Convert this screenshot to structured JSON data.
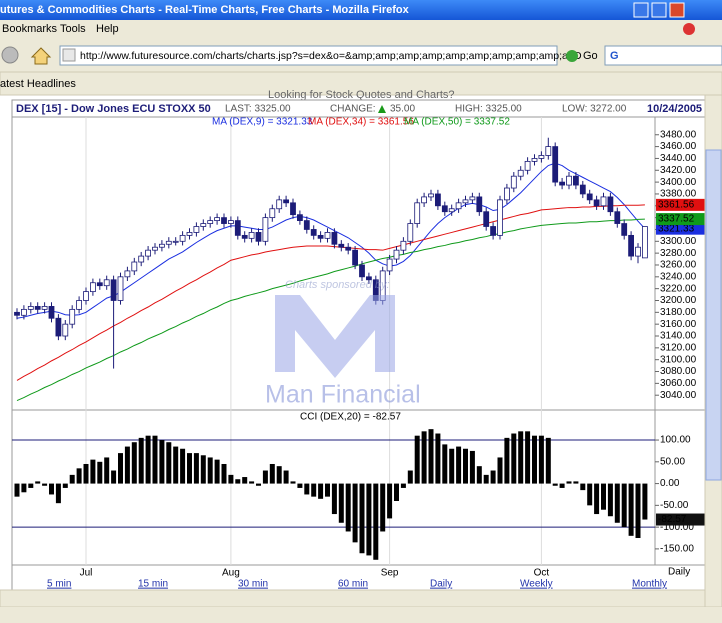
{
  "browser": {
    "window_title": "utures & Commodities Charts - Real-Time Charts, Free Charts - Mozilla Firefox",
    "menu": [
      "Bookmarks",
      "Tools",
      "Help"
    ],
    "url": "http://www.futuresource.com/charts/charts.jsp?s=dex&o=&amp;amp;amp;amp;amp;amp;amp;amp;amp;a=D",
    "go": "Go",
    "bookmark": "atest Headlines"
  },
  "page": {
    "promo": "Looking for Stock Quotes and Charts?",
    "links": [
      "5 min",
      "15 min",
      "30 min",
      "60 min",
      "Daily",
      "Weekly",
      "Monthly"
    ]
  },
  "watermark": {
    "sponsor": "Charts sponsored by:",
    "brand": "Man Financial"
  },
  "chart_data": [
    {
      "type": "candlestick",
      "title": "DEX [15] - Dow Jones ECU STOXX 50",
      "last": "LAST: 3325.00",
      "change_label": "CHANGE:",
      "change": "35.00",
      "high_label": "HIGH: 3325.00",
      "low_label": "LOW: 3272.00",
      "date": "10/24/2005",
      "period": "Daily",
      "up_color": "#ffffff",
      "down_color": "#1c1c78",
      "categories": [
        null,
        null,
        null,
        null,
        null,
        null,
        null,
        null,
        null,
        null,
        "Jul",
        null,
        null,
        null,
        null,
        null,
        null,
        null,
        null,
        null,
        null,
        null,
        null,
        null,
        null,
        null,
        null,
        null,
        null,
        null,
        null,
        "Aug",
        null,
        null,
        null,
        null,
        null,
        null,
        null,
        null,
        null,
        null,
        null,
        null,
        null,
        null,
        null,
        null,
        null,
        null,
        null,
        null,
        null,
        null,
        "Sep",
        null,
        null,
        null,
        null,
        null,
        null,
        null,
        null,
        null,
        null,
        null,
        null,
        null,
        null,
        null,
        null,
        null,
        null,
        null,
        null,
        null,
        "Oct",
        null,
        null,
        null,
        null,
        null,
        null,
        null,
        null,
        null,
        null,
        null,
        null,
        null,
        null,
        null
      ],
      "open": [
        3180,
        3175,
        3185,
        3190,
        3185,
        3190,
        3170,
        3140,
        3160,
        3185,
        3200,
        3215,
        3230,
        3225,
        3235,
        3200,
        3240,
        3250,
        3265,
        3275,
        3285,
        3290,
        3295,
        3300,
        3300,
        3310,
        3315,
        3325,
        3330,
        3335,
        3340,
        3330,
        3335,
        3310,
        3305,
        3315,
        3300,
        3340,
        3355,
        3370,
        3365,
        3345,
        3335,
        3320,
        3310,
        3305,
        3315,
        3295,
        3290,
        3285,
        3260,
        3240,
        3235,
        3200,
        3250,
        3270,
        3285,
        3300,
        3330,
        3365,
        3375,
        3380,
        3360,
        3350,
        3355,
        3365,
        3370,
        3375,
        3350,
        3325,
        3310,
        3370,
        3390,
        3410,
        3420,
        3435,
        3440,
        3445,
        3460,
        3400,
        3395,
        3410,
        3395,
        3380,
        3370,
        3360,
        3375,
        3350,
        3330,
        3310,
        3275,
        3272
      ],
      "high": [
        3187,
        3192,
        3197,
        3197,
        3197,
        3197,
        3177,
        3167,
        3192,
        3207,
        3222,
        3237,
        3237,
        3242,
        3242,
        3247,
        3257,
        3272,
        3282,
        3292,
        3297,
        3302,
        3307,
        3307,
        3317,
        3322,
        3332,
        3337,
        3342,
        3347,
        3347,
        3342,
        3342,
        3317,
        3322,
        3322,
        3347,
        3362,
        3377,
        3377,
        3372,
        3352,
        3342,
        3327,
        3317,
        3322,
        3322,
        3302,
        3297,
        3292,
        3267,
        3247,
        3242,
        3257,
        3277,
        3292,
        3307,
        3337,
        3372,
        3382,
        3387,
        3387,
        3367,
        3362,
        3372,
        3377,
        3382,
        3382,
        3357,
        3332,
        3377,
        3397,
        3417,
        3427,
        3442,
        3447,
        3452,
        3475,
        3467,
        3407,
        3417,
        3417,
        3402,
        3387,
        3377,
        3382,
        3382,
        3357,
        3337,
        3317,
        3297,
        3325
      ],
      "low": [
        3168,
        3168,
        3178,
        3178,
        3178,
        3163,
        3133,
        3133,
        3153,
        3178,
        3193,
        3208,
        3218,
        3218,
        3085,
        3193,
        3233,
        3243,
        3258,
        3268,
        3278,
        3283,
        3288,
        3293,
        3293,
        3303,
        3308,
        3318,
        3323,
        3328,
        3323,
        3323,
        3303,
        3298,
        3298,
        3293,
        3293,
        3333,
        3348,
        3358,
        3338,
        3328,
        3313,
        3303,
        3298,
        3298,
        3288,
        3283,
        3278,
        3253,
        3233,
        3228,
        3193,
        3193,
        3243,
        3263,
        3278,
        3293,
        3323,
        3358,
        3368,
        3353,
        3343,
        3343,
        3348,
        3358,
        3363,
        3343,
        3318,
        3303,
        3303,
        3363,
        3383,
        3403,
        3413,
        3428,
        3433,
        3438,
        3393,
        3388,
        3388,
        3388,
        3373,
        3363,
        3353,
        3353,
        3343,
        3323,
        3303,
        3268,
        3263,
        3272
      ],
      "close": [
        3175,
        3185,
        3190,
        3185,
        3190,
        3170,
        3140,
        3160,
        3185,
        3200,
        3215,
        3230,
        3225,
        3235,
        3200,
        3240,
        3250,
        3265,
        3275,
        3285,
        3290,
        3295,
        3300,
        3300,
        3310,
        3315,
        3325,
        3330,
        3335,
        3340,
        3330,
        3335,
        3310,
        3305,
        3315,
        3300,
        3340,
        3355,
        3370,
        3365,
        3345,
        3335,
        3320,
        3310,
        3305,
        3315,
        3295,
        3290,
        3285,
        3260,
        3240,
        3235,
        3200,
        3250,
        3270,
        3285,
        3300,
        3330,
        3365,
        3375,
        3380,
        3360,
        3350,
        3355,
        3365,
        3370,
        3375,
        3350,
        3325,
        3310,
        3370,
        3390,
        3410,
        3420,
        3435,
        3440,
        3445,
        3460,
        3400,
        3395,
        3410,
        3395,
        3380,
        3370,
        3360,
        3375,
        3350,
        3330,
        3310,
        3275,
        3290,
        3325
      ],
      "series": [
        {
          "name": "MA (DEX,9) = 3321.33",
          "color": "#1a2ee0",
          "values": [
            3170,
            3172,
            3175,
            3178,
            3180,
            3182,
            3180,
            3176,
            3175,
            3176,
            3180,
            3188,
            3196,
            3204,
            3208,
            3214,
            3222,
            3230,
            3238,
            3246,
            3254,
            3262,
            3270,
            3276,
            3282,
            3290,
            3298,
            3305,
            3312,
            3318,
            3322,
            3326,
            3326,
            3324,
            3322,
            3320,
            3320,
            3324,
            3330,
            3336,
            3340,
            3342,
            3340,
            3336,
            3330,
            3324,
            3318,
            3312,
            3306,
            3298,
            3290,
            3280,
            3268,
            3262,
            3258,
            3260,
            3266,
            3276,
            3290,
            3304,
            3318,
            3330,
            3340,
            3348,
            3356,
            3362,
            3364,
            3362,
            3358,
            3352,
            3354,
            3362,
            3372,
            3382,
            3394,
            3406,
            3418,
            3428,
            3432,
            3428,
            3420,
            3414,
            3408,
            3402,
            3396,
            3390,
            3384,
            3374,
            3362,
            3348,
            3334,
            3321.33
          ]
        },
        {
          "name": "MA (DEX,34) = 3361.56",
          "color": "#e01010",
          "values": [
            3065,
            3072,
            3078,
            3085,
            3091,
            3098,
            3104,
            3111,
            3117,
            3124,
            3130,
            3137,
            3144,
            3150,
            3157,
            3163,
            3170,
            3176,
            3183,
            3189,
            3196,
            3202,
            3209,
            3216,
            3222,
            3229,
            3235,
            3242,
            3248,
            3255,
            3261,
            3268,
            3271,
            3274,
            3277,
            3279,
            3282,
            3284,
            3286,
            3288,
            3290,
            3291,
            3292,
            3292,
            3292,
            3292,
            3291,
            3290,
            3289,
            3288,
            3287,
            3286,
            3286,
            3285,
            3288,
            3291,
            3294,
            3297,
            3300,
            3303,
            3306,
            3309,
            3312,
            3315,
            3318,
            3321,
            3324,
            3327,
            3330,
            3333,
            3336,
            3339,
            3342,
            3345,
            3347,
            3350,
            3353,
            3354,
            3355,
            3356,
            3357,
            3357,
            3358,
            3358,
            3359,
            3359,
            3360,
            3360,
            3361,
            3361,
            3361,
            3361.56
          ]
        },
        {
          "name": "MA (DEX,50) = 3337.52",
          "color": "#0f9a1a",
          "values": [
            3031,
            3036,
            3042,
            3047,
            3053,
            3058,
            3064,
            3069,
            3075,
            3080,
            3086,
            3091,
            3096,
            3102,
            3107,
            3113,
            3118,
            3124,
            3129,
            3135,
            3140,
            3145,
            3151,
            3156,
            3162,
            3167,
            3173,
            3178,
            3184,
            3189,
            3195,
            3200,
            3203,
            3207,
            3210,
            3213,
            3216,
            3220,
            3223,
            3226,
            3229,
            3233,
            3236,
            3239,
            3242,
            3245,
            3249,
            3252,
            3255,
            3258,
            3262,
            3265,
            3268,
            3271,
            3273,
            3276,
            3278,
            3281,
            3283,
            3286,
            3288,
            3291,
            3293,
            3296,
            3298,
            3301,
            3303,
            3306,
            3308,
            3311,
            3313,
            3316,
            3318,
            3321,
            3323,
            3325,
            3327,
            3328,
            3329,
            3330,
            3331,
            3331,
            3332,
            3333,
            3333,
            3334,
            3335,
            3335,
            3336,
            3336,
            3337,
            3337.52
          ]
        }
      ],
      "ylim": [
        3015,
        3510
      ],
      "yticks": [
        {
          "value": 3480,
          "label": "3480.00"
        },
        {
          "value": 3460,
          "label": "3460.00"
        },
        {
          "value": 3440,
          "label": "3440.00"
        },
        {
          "value": 3420,
          "label": "3420.00"
        },
        {
          "value": 3400,
          "label": "3400.00"
        },
        {
          "value": 3380,
          "label": "3380.00"
        },
        {
          "value": 3360,
          "label": "3360.00"
        },
        {
          "value": 3340,
          "label": "3340.00"
        },
        {
          "value": 3320,
          "label": "3320.00"
        },
        {
          "value": 3300,
          "label": "3300.00"
        },
        {
          "value": 3280,
          "label": "3280.00"
        },
        {
          "value": 3260,
          "label": "3260.00"
        },
        {
          "value": 3240,
          "label": "3240.00"
        },
        {
          "value": 3220,
          "label": "3220.00"
        },
        {
          "value": 3200,
          "label": "3200.00"
        },
        {
          "value": 3180,
          "label": "3180.00"
        },
        {
          "value": 3160,
          "label": "3160.00"
        },
        {
          "value": 3140,
          "label": "3140.00"
        },
        {
          "value": 3120,
          "label": "3120.00"
        },
        {
          "value": 3100,
          "label": "3100.00"
        },
        {
          "value": 3080,
          "label": "3080.00"
        },
        {
          "value": 3060,
          "label": "3060.00"
        },
        {
          "value": 3040,
          "label": "3040.00"
        }
      ],
      "grid": true
    },
    {
      "type": "bar",
      "title": "CCI (DEX,20) = -82.57",
      "color": "#000000",
      "levels": [
        100,
        -100
      ],
      "values": [
        -30,
        -20,
        -10,
        5,
        -5,
        -25,
        -45,
        -10,
        20,
        35,
        45,
        55,
        50,
        60,
        30,
        70,
        85,
        95,
        105,
        110,
        110,
        100,
        95,
        85,
        80,
        70,
        70,
        65,
        60,
        55,
        45,
        20,
        10,
        15,
        5,
        -5,
        30,
        45,
        40,
        30,
        5,
        -10,
        -25,
        -30,
        -35,
        -30,
        -70,
        -90,
        -110,
        -135,
        -160,
        -165,
        -175,
        -110,
        -80,
        -40,
        -10,
        30,
        110,
        120,
        125,
        115,
        90,
        80,
        85,
        80,
        75,
        40,
        20,
        30,
        60,
        105,
        115,
        120,
        120,
        110,
        110,
        105,
        -5,
        -10,
        5,
        5,
        -15,
        -50,
        -70,
        -60,
        -75,
        -90,
        -100,
        -120,
        -125,
        -82.57
      ],
      "ylim": [
        -187,
        169
      ],
      "yticks": [
        {
          "value": 100,
          "label": "100.00"
        },
        {
          "value": 50,
          "label": "50.00"
        },
        {
          "value": 0,
          "label": "0.00"
        },
        {
          "value": -50,
          "label": "-50.00"
        },
        {
          "value": -100,
          "label": "-100.00"
        },
        {
          "value": -150,
          "label": "-150.00"
        }
      ]
    }
  ]
}
